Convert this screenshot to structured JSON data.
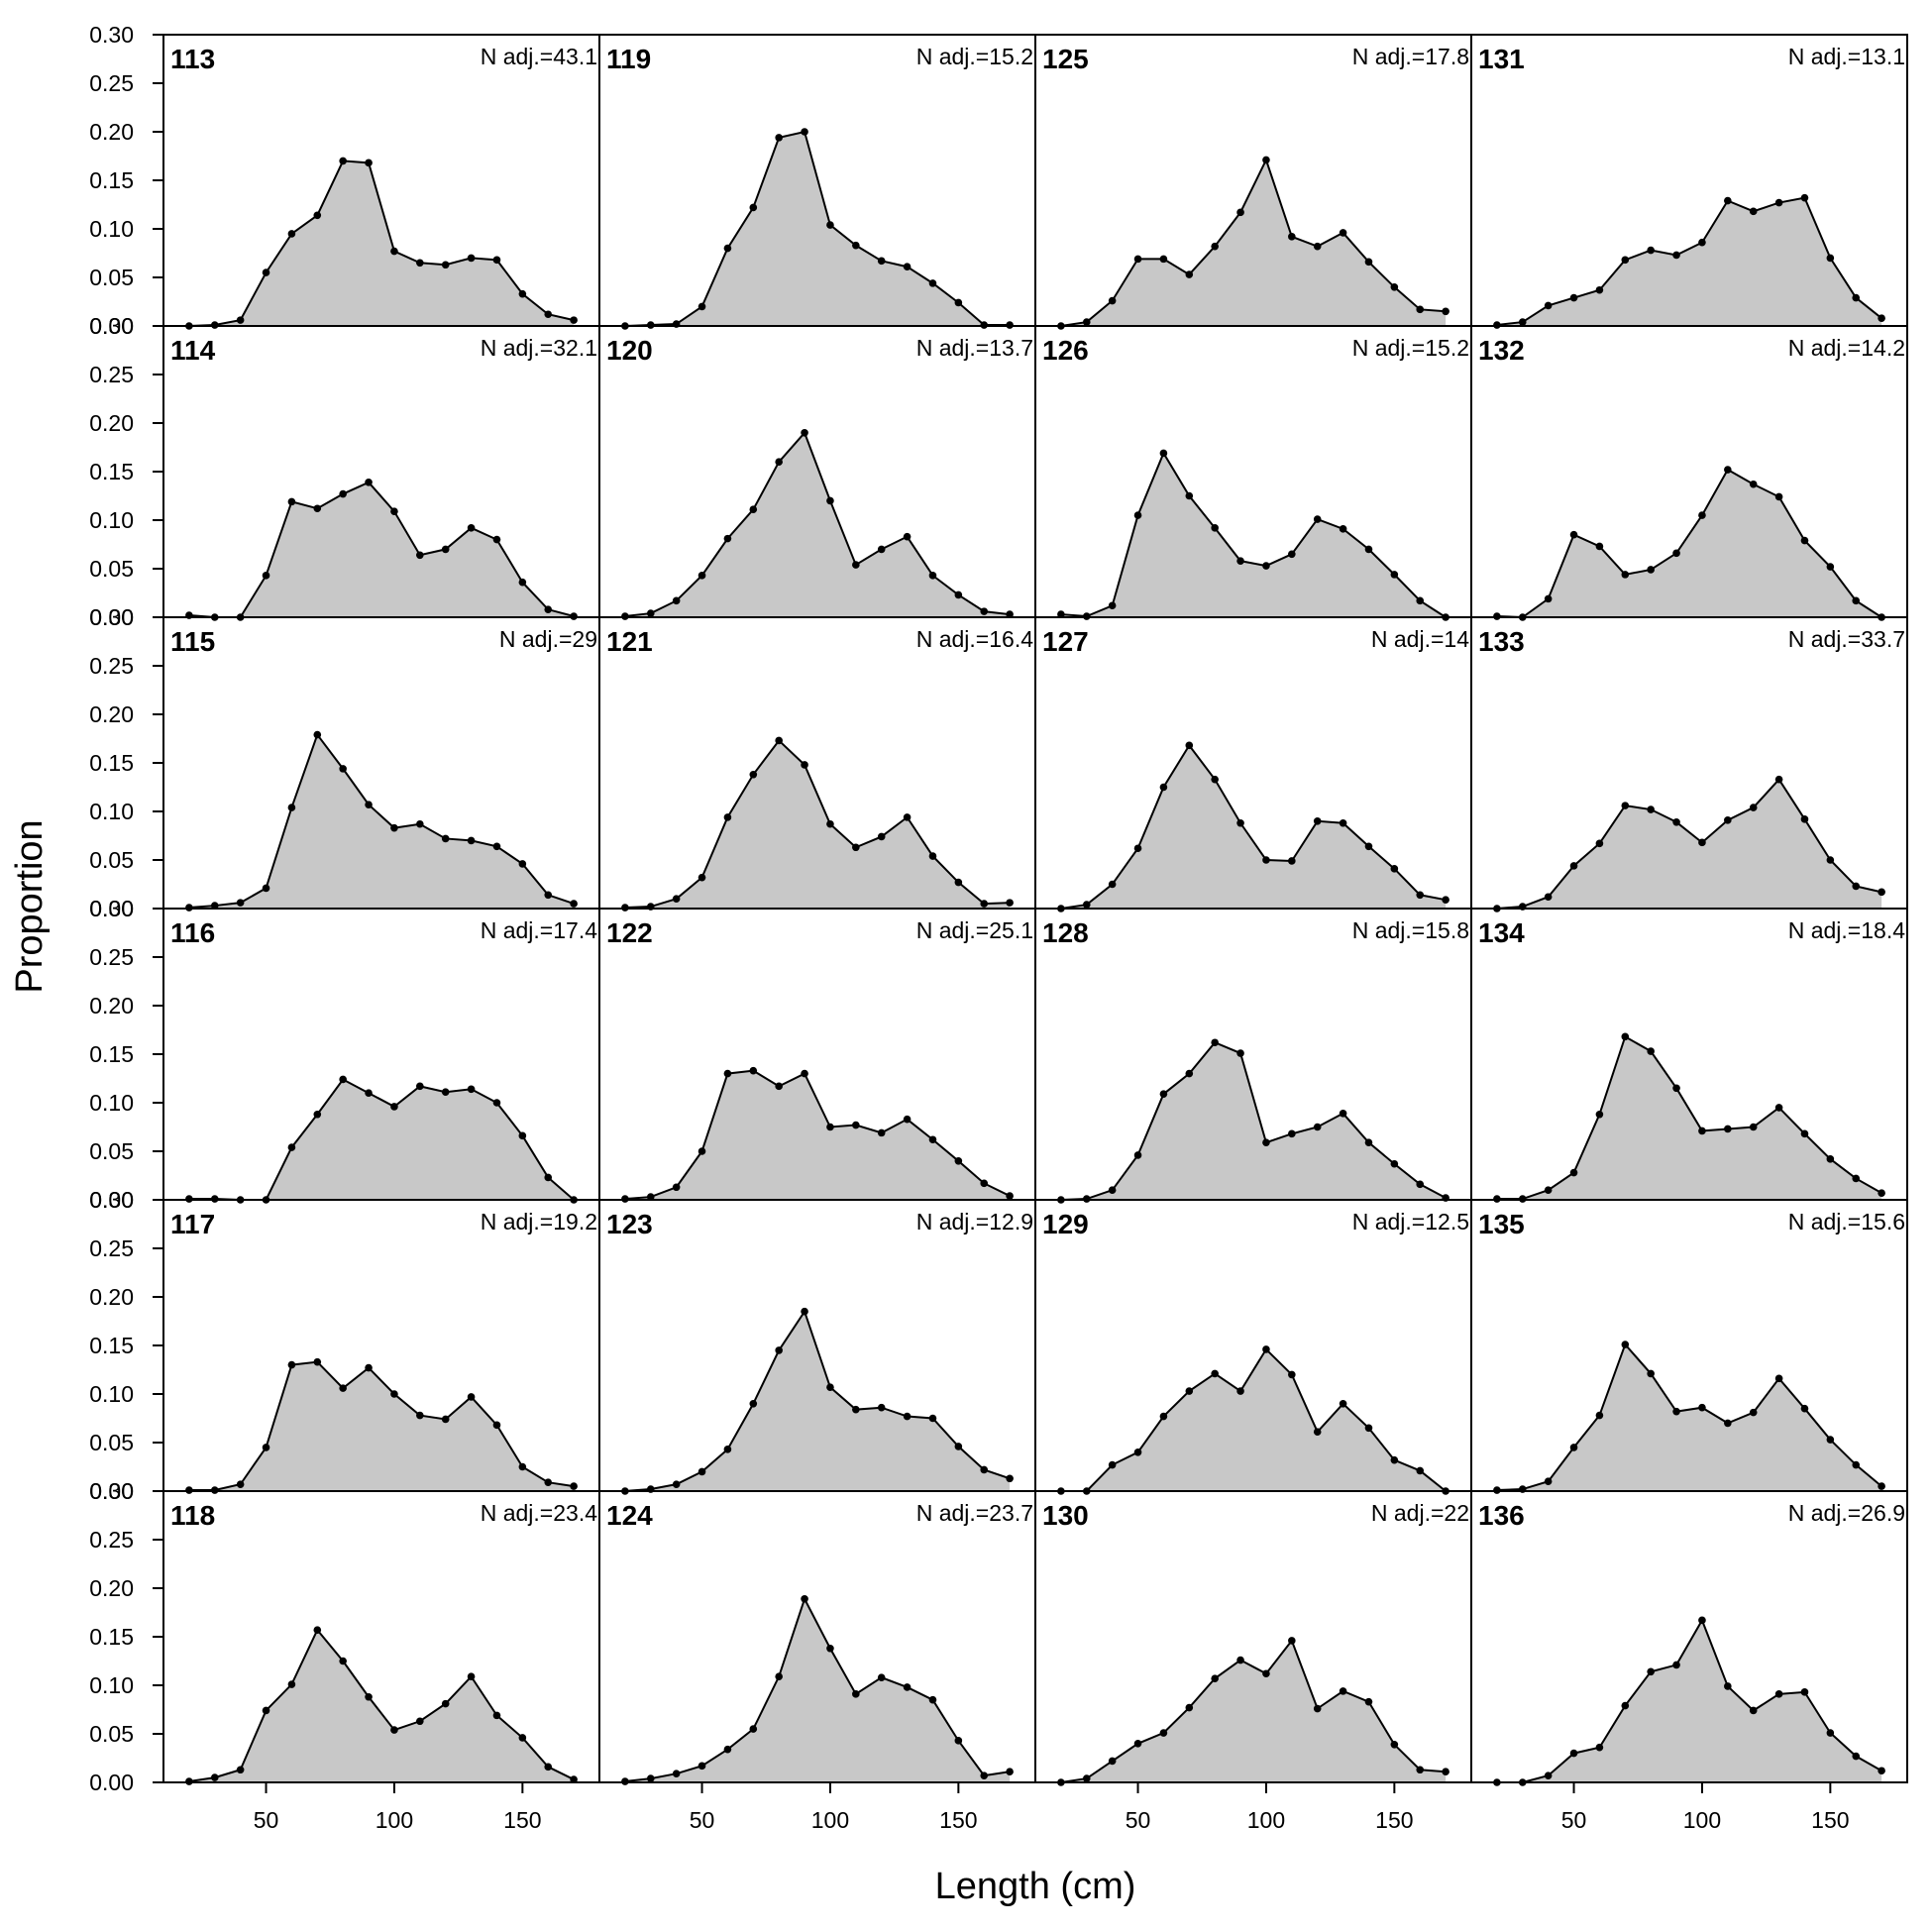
{
  "chart_data": {
    "type": "area",
    "xlabel": "Length (cm)",
    "ylabel": "Proportion",
    "xlim": [
      10,
      180
    ],
    "ylim": [
      0,
      0.3
    ],
    "x_ticks": [
      50,
      100,
      150
    ],
    "y_ticks": [
      "0.00",
      "0.05",
      "0.10",
      "0.15",
      "0.20",
      "0.25",
      "0.30"
    ],
    "x": [
      20,
      30,
      40,
      50,
      60,
      70,
      80,
      90,
      100,
      110,
      120,
      130,
      140,
      150,
      160,
      170
    ],
    "layout": {
      "columns": 4,
      "rows": 6
    },
    "colors": {
      "fill": "#c8c8c8",
      "line": "#000000"
    },
    "panels": [
      {
        "id": "113",
        "n_label": "N adj.=43.1",
        "values": [
          0.0,
          0.001,
          0.006,
          0.055,
          0.095,
          0.114,
          0.17,
          0.168,
          0.077,
          0.065,
          0.063,
          0.07,
          0.068,
          0.033,
          0.012,
          0.006
        ]
      },
      {
        "id": "114",
        "n_label": "N adj.=32.1",
        "values": [
          0.002,
          0.0,
          0.0,
          0.043,
          0.119,
          0.112,
          0.127,
          0.139,
          0.109,
          0.064,
          0.07,
          0.092,
          0.08,
          0.036,
          0.008,
          0.001
        ]
      },
      {
        "id": "115",
        "n_label": "N adj.=29",
        "values": [
          0.001,
          0.003,
          0.006,
          0.021,
          0.104,
          0.179,
          0.144,
          0.107,
          0.083,
          0.087,
          0.072,
          0.07,
          0.064,
          0.046,
          0.014,
          0.005
        ]
      },
      {
        "id": "116",
        "n_label": "N adj.=17.4",
        "values": [
          0.001,
          0.001,
          0.0,
          0.0,
          0.054,
          0.088,
          0.124,
          0.11,
          0.096,
          0.117,
          0.111,
          0.114,
          0.1,
          0.066,
          0.023,
          0.0
        ]
      },
      {
        "id": "117",
        "n_label": "N adj.=19.2",
        "values": [
          0.001,
          0.001,
          0.007,
          0.045,
          0.13,
          0.133,
          0.106,
          0.127,
          0.1,
          0.078,
          0.074,
          0.097,
          0.068,
          0.025,
          0.009,
          0.005
        ]
      },
      {
        "id": "118",
        "n_label": "N adj.=23.4",
        "values": [
          0.001,
          0.005,
          0.013,
          0.074,
          0.101,
          0.157,
          0.125,
          0.088,
          0.054,
          0.063,
          0.081,
          0.109,
          0.069,
          0.046,
          0.016,
          0.003
        ]
      },
      {
        "id": "119",
        "n_label": "N adj.=15.2",
        "values": [
          0.0,
          0.001,
          0.002,
          0.02,
          0.08,
          0.122,
          0.194,
          0.2,
          0.104,
          0.083,
          0.067,
          0.061,
          0.044,
          0.024,
          0.001,
          0.001
        ]
      },
      {
        "id": "120",
        "n_label": "N adj.=13.7",
        "values": [
          0.001,
          0.004,
          0.017,
          0.043,
          0.081,
          0.111,
          0.16,
          0.19,
          0.12,
          0.054,
          0.07,
          0.083,
          0.043,
          0.023,
          0.006,
          0.003
        ]
      },
      {
        "id": "121",
        "n_label": "N adj.=16.4",
        "values": [
          0.001,
          0.002,
          0.01,
          0.032,
          0.094,
          0.138,
          0.173,
          0.148,
          0.087,
          0.063,
          0.074,
          0.094,
          0.054,
          0.027,
          0.005,
          0.006
        ]
      },
      {
        "id": "122",
        "n_label": "N adj.=25.1",
        "values": [
          0.001,
          0.003,
          0.013,
          0.05,
          0.13,
          0.133,
          0.117,
          0.13,
          0.075,
          0.077,
          0.069,
          0.083,
          0.062,
          0.04,
          0.017,
          0.004
        ]
      },
      {
        "id": "123",
        "n_label": "N adj.=12.9",
        "values": [
          0.0,
          0.002,
          0.007,
          0.02,
          0.043,
          0.09,
          0.145,
          0.185,
          0.107,
          0.084,
          0.086,
          0.077,
          0.075,
          0.046,
          0.022,
          0.013
        ]
      },
      {
        "id": "124",
        "n_label": "N adj.=23.7",
        "values": [
          0.001,
          0.004,
          0.009,
          0.017,
          0.034,
          0.055,
          0.109,
          0.189,
          0.138,
          0.091,
          0.108,
          0.098,
          0.085,
          0.043,
          0.007,
          0.011
        ]
      },
      {
        "id": "125",
        "n_label": "N adj.=17.8",
        "values": [
          0.0,
          0.004,
          0.026,
          0.069,
          0.069,
          0.053,
          0.082,
          0.117,
          0.171,
          0.092,
          0.082,
          0.096,
          0.066,
          0.04,
          0.017,
          0.015
        ]
      },
      {
        "id": "126",
        "n_label": "N adj.=15.2",
        "values": [
          0.003,
          0.001,
          0.012,
          0.105,
          0.169,
          0.125,
          0.092,
          0.058,
          0.053,
          0.065,
          0.101,
          0.091,
          0.07,
          0.044,
          0.017,
          0.0
        ]
      },
      {
        "id": "127",
        "n_label": "N adj.=14",
        "values": [
          0.0,
          0.004,
          0.025,
          0.062,
          0.125,
          0.168,
          0.133,
          0.088,
          0.05,
          0.049,
          0.09,
          0.088,
          0.064,
          0.041,
          0.014,
          0.009
        ]
      },
      {
        "id": "128",
        "n_label": "N adj.=15.8",
        "values": [
          0.0,
          0.001,
          0.01,
          0.046,
          0.109,
          0.13,
          0.162,
          0.151,
          0.059,
          0.068,
          0.075,
          0.089,
          0.059,
          0.037,
          0.016,
          0.002
        ]
      },
      {
        "id": "129",
        "n_label": "N adj.=12.5",
        "values": [
          0.0,
          0.0,
          0.027,
          0.04,
          0.077,
          0.103,
          0.121,
          0.103,
          0.146,
          0.12,
          0.061,
          0.09,
          0.065,
          0.032,
          0.021,
          0.0
        ]
      },
      {
        "id": "130",
        "n_label": "N adj.=22",
        "values": [
          0.0,
          0.004,
          0.022,
          0.04,
          0.051,
          0.077,
          0.107,
          0.126,
          0.112,
          0.146,
          0.076,
          0.094,
          0.083,
          0.039,
          0.013,
          0.011
        ]
      },
      {
        "id": "131",
        "n_label": "N adj.=13.1",
        "values": [
          0.001,
          0.004,
          0.021,
          0.029,
          0.037,
          0.068,
          0.078,
          0.073,
          0.086,
          0.129,
          0.118,
          0.127,
          0.132,
          0.07,
          0.029,
          0.008
        ]
      },
      {
        "id": "132",
        "n_label": "N adj.=14.2",
        "values": [
          0.001,
          0.0,
          0.019,
          0.085,
          0.073,
          0.044,
          0.049,
          0.066,
          0.105,
          0.152,
          0.137,
          0.124,
          0.079,
          0.052,
          0.017,
          0.0
        ]
      },
      {
        "id": "133",
        "n_label": "N adj.=33.7",
        "values": [
          0.0,
          0.002,
          0.012,
          0.044,
          0.067,
          0.106,
          0.102,
          0.089,
          0.068,
          0.091,
          0.104,
          0.133,
          0.092,
          0.05,
          0.023,
          0.017
        ]
      },
      {
        "id": "134",
        "n_label": "N adj.=18.4",
        "values": [
          0.001,
          0.001,
          0.01,
          0.028,
          0.088,
          0.168,
          0.153,
          0.115,
          0.071,
          0.073,
          0.075,
          0.095,
          0.068,
          0.042,
          0.022,
          0.007
        ]
      },
      {
        "id": "135",
        "n_label": "N adj.=15.6",
        "values": [
          0.001,
          0.002,
          0.01,
          0.045,
          0.078,
          0.151,
          0.121,
          0.082,
          0.086,
          0.07,
          0.081,
          0.116,
          0.085,
          0.053,
          0.027,
          0.005
        ]
      },
      {
        "id": "136",
        "n_label": "N adj.=26.9",
        "values": [
          0.0,
          0.0,
          0.007,
          0.03,
          0.036,
          0.079,
          0.114,
          0.121,
          0.167,
          0.099,
          0.074,
          0.091,
          0.093,
          0.051,
          0.027,
          0.012
        ]
      }
    ]
  }
}
